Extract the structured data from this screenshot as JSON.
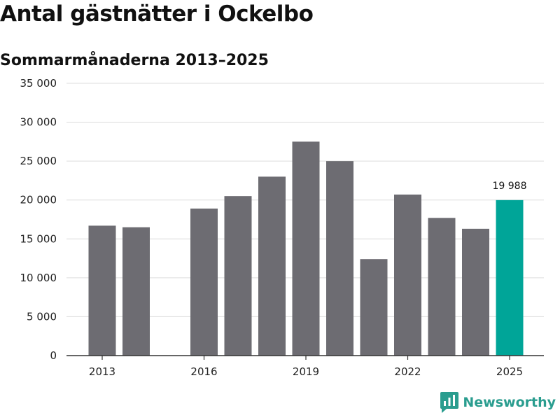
{
  "title": "Antal gästnätter i Ockelbo",
  "subtitle": "Sommarmånaderna 2013–2025",
  "brand": "Newsworthy",
  "colors": {
    "bar": "#6d6c72",
    "highlight": "#00a598",
    "grid": "#dcdcdc",
    "axis": "#333333"
  },
  "chart_data": {
    "type": "bar",
    "title": "Antal gästnätter i Ockelbo",
    "subtitle": "Sommarmånaderna 2013–2025",
    "xlabel": "",
    "ylabel": "",
    "ylim": [
      0,
      35000
    ],
    "yticks": [
      0,
      5000,
      10000,
      15000,
      20000,
      25000,
      30000,
      35000
    ],
    "ytick_labels": [
      "0",
      "5 000",
      "10 000",
      "15 000",
      "20 000",
      "25 000",
      "30 000",
      "35 000"
    ],
    "x": [
      2013,
      2014,
      2015,
      2016,
      2017,
      2018,
      2019,
      2020,
      2021,
      2022,
      2023,
      2024,
      2025
    ],
    "values": [
      16700,
      16500,
      null,
      18900,
      20500,
      23000,
      27500,
      25000,
      12400,
      20700,
      17700,
      16300,
      19988
    ],
    "xtick_labels": [
      "2013",
      "2016",
      "2019",
      "2022",
      "2025"
    ],
    "highlight": {
      "x": 2025,
      "label": "19 988"
    },
    "grid": true
  }
}
